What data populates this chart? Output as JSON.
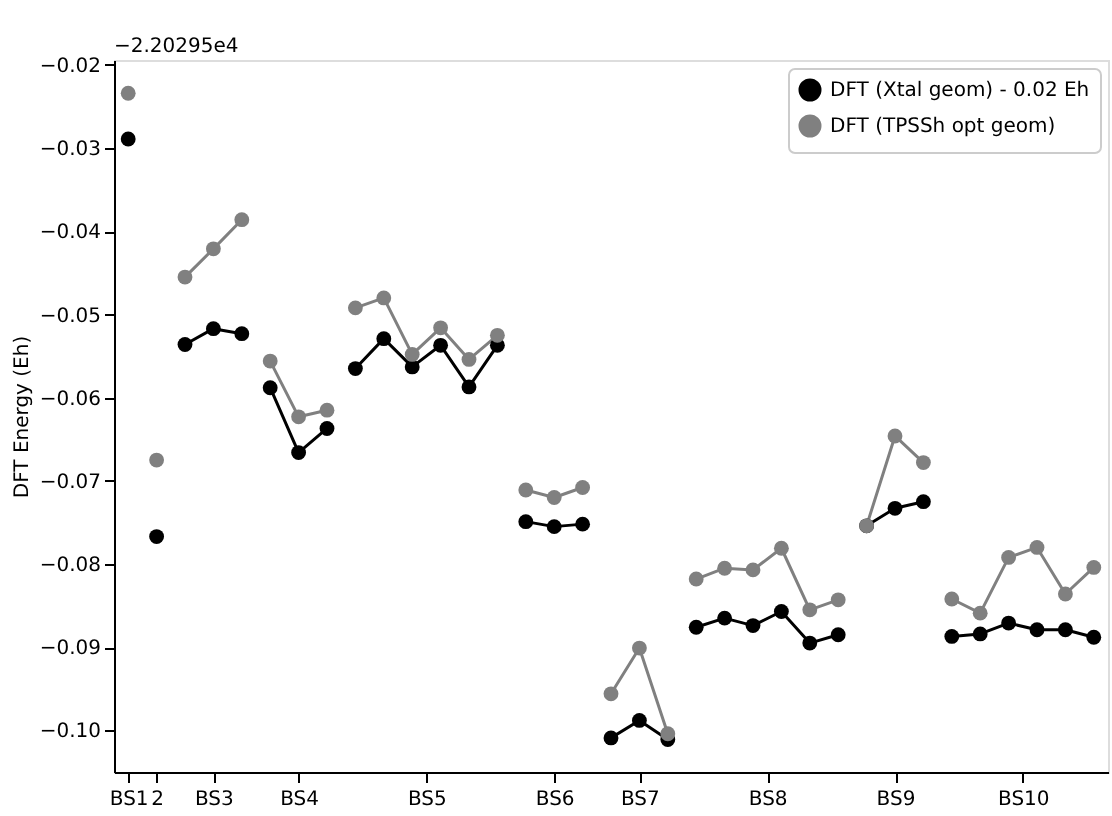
{
  "chart_data": {
    "type": "line",
    "ylabel": "DFT Energy (Eh)",
    "annotations": [
      "−2.20295e4"
    ],
    "ylim": [
      -0.105,
      -0.0194
    ],
    "yticks": [
      {
        "value": -0.02,
        "label": "−0.02"
      },
      {
        "value": -0.03,
        "label": "−0.03"
      },
      {
        "value": -0.04,
        "label": "−0.04"
      },
      {
        "value": -0.05,
        "label": "−0.05"
      },
      {
        "value": -0.06,
        "label": "−0.06"
      },
      {
        "value": -0.07,
        "label": "−0.07"
      },
      {
        "value": -0.08,
        "label": "−0.08"
      },
      {
        "value": -0.09,
        "label": "−0.09"
      },
      {
        "value": -0.1,
        "label": "−0.10"
      }
    ],
    "categories": [
      "BS1",
      null,
      "2",
      null,
      null,
      null,
      "BS3",
      null,
      null,
      null,
      null,
      null,
      "BS4",
      null,
      null,
      null,
      null,
      null,
      null,
      null,
      null,
      "BS5",
      null,
      null,
      null,
      null,
      null,
      null,
      null,
      null,
      "BS6",
      null,
      null,
      null,
      null,
      null,
      "BS7",
      null,
      null,
      null,
      null,
      null,
      null,
      null,
      null,
      "BS8",
      null,
      null,
      null,
      null,
      null,
      null,
      null,
      null,
      "BS9",
      null,
      null,
      null,
      null,
      null,
      null,
      null,
      null,
      "BS10",
      null,
      null,
      null,
      null,
      null
    ],
    "series": [
      {
        "name": "DFT (Xtal geom) - 0.02 Eh",
        "color": "#000000",
        "values": [
          -0.0289,
          null,
          null,
          null,
          null,
          null,
          null,
          null,
          null,
          null,
          null,
          null,
          null,
          null,
          null,
          null,
          null,
          null,
          null,
          null,
          null,
          null,
          null,
          null,
          null,
          null,
          null,
          null,
          null,
          null,
          null,
          null,
          null,
          null,
          null,
          null,
          null,
          null,
          null,
          null,
          null,
          null,
          null,
          null,
          null,
          null,
          null,
          null,
          null,
          null,
          null,
          null,
          null,
          null,
          null,
          null,
          null,
          null,
          null,
          null,
          null,
          null,
          null,
          null,
          null,
          null,
          null,
          null,
          null
        ]
      },
      {
        "name": "DFT (TPSSh opt geom)",
        "color": "#808080",
        "values": [
          -0.0234,
          null,
          null,
          null,
          null,
          null,
          null,
          null,
          null,
          null,
          null,
          null,
          null,
          null,
          null,
          null,
          null,
          null,
          null,
          null,
          null,
          null,
          null,
          null,
          null,
          null,
          null,
          null,
          null,
          null,
          null,
          null,
          null,
          null,
          null,
          null,
          null,
          null,
          null,
          null,
          null,
          null,
          null,
          null,
          null,
          null,
          null,
          null,
          null,
          null,
          null,
          null,
          null,
          null,
          null,
          null,
          null,
          null,
          null,
          null,
          null,
          null,
          null,
          null,
          null,
          null,
          null,
          null,
          null
        ]
      },
      {
        "color": "#000000",
        "values": [
          null,
          null,
          -0.0767,
          null,
          null,
          null,
          null,
          null,
          null,
          null,
          null,
          null,
          null,
          null,
          null,
          null,
          null,
          null,
          null,
          null,
          null,
          null,
          null,
          null,
          null,
          null,
          null,
          null,
          null,
          null,
          null,
          null,
          null,
          null,
          null,
          null,
          null,
          null,
          null,
          null,
          null,
          null,
          null,
          null,
          null,
          null,
          null,
          null,
          null,
          null,
          null,
          null,
          null,
          null,
          null,
          null,
          null,
          null,
          null,
          null,
          null,
          null,
          null,
          null,
          null,
          null,
          null,
          null,
          null
        ]
      },
      {
        "color": "#808080",
        "values": [
          null,
          null,
          -0.0675,
          null,
          null,
          null,
          null,
          null,
          null,
          null,
          null,
          null,
          null,
          null,
          null,
          null,
          null,
          null,
          null,
          null,
          null,
          null,
          null,
          null,
          null,
          null,
          null,
          null,
          null,
          null,
          null,
          null,
          null,
          null,
          null,
          null,
          null,
          null,
          null,
          null,
          null,
          null,
          null,
          null,
          null,
          null,
          null,
          null,
          null,
          null,
          null,
          null,
          null,
          null,
          null,
          null,
          null,
          null,
          null,
          null,
          null,
          null,
          null,
          null,
          null,
          null,
          null,
          null,
          null
        ]
      },
      {
        "color": "#000000",
        "values": [
          null,
          null,
          null,
          null,
          -0.0536,
          null,
          -0.0517,
          null,
          -0.0523,
          null,
          null,
          null,
          null,
          null,
          null,
          null,
          null,
          null,
          null,
          null,
          null,
          null,
          null,
          null,
          null,
          null,
          null,
          null,
          null,
          null,
          null,
          null,
          null,
          null,
          null,
          null,
          null,
          null,
          null,
          null,
          null,
          null,
          null,
          null,
          null,
          null,
          null,
          null,
          null,
          null,
          null,
          null,
          null,
          null,
          null,
          null,
          null,
          null,
          null,
          null,
          null,
          null,
          null,
          null,
          null,
          null,
          null,
          null,
          null
        ]
      },
      {
        "color": "#808080",
        "values": [
          null,
          null,
          null,
          null,
          -0.0455,
          null,
          -0.0421,
          null,
          -0.0386,
          null,
          null,
          null,
          null,
          null,
          null,
          null,
          null,
          null,
          null,
          null,
          null,
          null,
          null,
          null,
          null,
          null,
          null,
          null,
          null,
          null,
          null,
          null,
          null,
          null,
          null,
          null,
          null,
          null,
          null,
          null,
          null,
          null,
          null,
          null,
          null,
          null,
          null,
          null,
          null,
          null,
          null,
          null,
          null,
          null,
          null,
          null,
          null,
          null,
          null,
          null,
          null,
          null,
          null,
          null,
          null,
          null,
          null,
          null,
          null
        ]
      },
      {
        "color": "#000000",
        "values": [
          null,
          null,
          null,
          null,
          null,
          null,
          null,
          null,
          null,
          null,
          -0.0588,
          null,
          -0.0666,
          null,
          -0.0637,
          null,
          null,
          null,
          null,
          null,
          null,
          null,
          null,
          null,
          null,
          null,
          null,
          null,
          null,
          null,
          null,
          null,
          null,
          null,
          null,
          null,
          null,
          null,
          null,
          null,
          null,
          null,
          null,
          null,
          null,
          null,
          null,
          null,
          null,
          null,
          null,
          null,
          null,
          null,
          null,
          null,
          null,
          null,
          null,
          null,
          null,
          null,
          null,
          null,
          null,
          null,
          null,
          null,
          null
        ]
      },
      {
        "color": "#808080",
        "values": [
          null,
          null,
          null,
          null,
          null,
          null,
          null,
          null,
          null,
          null,
          -0.0556,
          null,
          -0.0623,
          null,
          -0.0615,
          null,
          null,
          null,
          null,
          null,
          null,
          null,
          null,
          null,
          null,
          null,
          null,
          null,
          null,
          null,
          null,
          null,
          null,
          null,
          null,
          null,
          null,
          null,
          null,
          null,
          null,
          null,
          null,
          null,
          null,
          null,
          null,
          null,
          null,
          null,
          null,
          null,
          null,
          null,
          null,
          null,
          null,
          null,
          null,
          null,
          null,
          null,
          null,
          null,
          null,
          null,
          null,
          null,
          null
        ]
      },
      {
        "color": "#000000",
        "values": [
          null,
          null,
          null,
          null,
          null,
          null,
          null,
          null,
          null,
          null,
          null,
          null,
          null,
          null,
          null,
          null,
          -0.0565,
          null,
          -0.0529,
          null,
          -0.0563,
          null,
          -0.0537,
          null,
          -0.0587,
          null,
          -0.0537,
          null,
          null,
          null,
          null,
          null,
          null,
          null,
          null,
          null,
          null,
          null,
          null,
          null,
          null,
          null,
          null,
          null,
          null,
          null,
          null,
          null,
          null,
          null,
          null,
          null,
          null,
          null,
          null,
          null,
          null,
          null,
          null,
          null,
          null,
          null,
          null,
          null,
          null,
          null,
          null,
          null,
          null
        ]
      },
      {
        "color": "#808080",
        "values": [
          null,
          null,
          null,
          null,
          null,
          null,
          null,
          null,
          null,
          null,
          null,
          null,
          null,
          null,
          null,
          null,
          -0.0492,
          null,
          -0.048,
          null,
          -0.0548,
          null,
          -0.0516,
          null,
          -0.0554,
          null,
          -0.0525,
          null,
          null,
          null,
          null,
          null,
          null,
          null,
          null,
          null,
          null,
          null,
          null,
          null,
          null,
          null,
          null,
          null,
          null,
          null,
          null,
          null,
          null,
          null,
          null,
          null,
          null,
          null,
          null,
          null,
          null,
          null,
          null,
          null,
          null,
          null,
          null,
          null,
          null,
          null,
          null,
          null,
          null
        ]
      },
      {
        "color": "#000000",
        "values": [
          null,
          null,
          null,
          null,
          null,
          null,
          null,
          null,
          null,
          null,
          null,
          null,
          null,
          null,
          null,
          null,
          null,
          null,
          null,
          null,
          null,
          null,
          null,
          null,
          null,
          null,
          null,
          null,
          -0.0749,
          null,
          -0.0755,
          null,
          -0.0752,
          null,
          null,
          null,
          null,
          null,
          null,
          null,
          null,
          null,
          null,
          null,
          null,
          null,
          null,
          null,
          null,
          null,
          null,
          null,
          null,
          null,
          null,
          null,
          null,
          null,
          null,
          null,
          null,
          null,
          null,
          null,
          null,
          null,
          null,
          null,
          null
        ]
      },
      {
        "color": "#808080",
        "values": [
          null,
          null,
          null,
          null,
          null,
          null,
          null,
          null,
          null,
          null,
          null,
          null,
          null,
          null,
          null,
          null,
          null,
          null,
          null,
          null,
          null,
          null,
          null,
          null,
          null,
          null,
          null,
          null,
          -0.0711,
          null,
          -0.072,
          null,
          -0.0708,
          null,
          null,
          null,
          null,
          null,
          null,
          null,
          null,
          null,
          null,
          null,
          null,
          null,
          null,
          null,
          null,
          null,
          null,
          null,
          null,
          null,
          null,
          null,
          null,
          null,
          null,
          null,
          null,
          null,
          null,
          null,
          null,
          null,
          null,
          null,
          null
        ]
      },
      {
        "color": "#000000",
        "values": [
          null,
          null,
          null,
          null,
          null,
          null,
          null,
          null,
          null,
          null,
          null,
          null,
          null,
          null,
          null,
          null,
          null,
          null,
          null,
          null,
          null,
          null,
          null,
          null,
          null,
          null,
          null,
          null,
          null,
          null,
          null,
          null,
          null,
          null,
          -0.1009,
          null,
          -0.0988,
          null,
          -0.1011,
          null,
          null,
          null,
          null,
          null,
          null,
          null,
          null,
          null,
          null,
          null,
          null,
          null,
          null,
          null,
          null,
          null,
          null,
          null,
          null,
          null,
          null,
          null,
          null,
          null,
          null,
          null,
          null,
          null,
          null
        ]
      },
      {
        "color": "#808080",
        "values": [
          null,
          null,
          null,
          null,
          null,
          null,
          null,
          null,
          null,
          null,
          null,
          null,
          null,
          null,
          null,
          null,
          null,
          null,
          null,
          null,
          null,
          null,
          null,
          null,
          null,
          null,
          null,
          null,
          null,
          null,
          null,
          null,
          null,
          null,
          -0.0956,
          null,
          -0.0901,
          null,
          -0.1004,
          null,
          null,
          null,
          null,
          null,
          null,
          null,
          null,
          null,
          null,
          null,
          null,
          null,
          null,
          null,
          null,
          null,
          null,
          null,
          null,
          null,
          null,
          null,
          null,
          null,
          null,
          null,
          null,
          null,
          null
        ]
      },
      {
        "color": "#000000",
        "values": [
          null,
          null,
          null,
          null,
          null,
          null,
          null,
          null,
          null,
          null,
          null,
          null,
          null,
          null,
          null,
          null,
          null,
          null,
          null,
          null,
          null,
          null,
          null,
          null,
          null,
          null,
          null,
          null,
          null,
          null,
          null,
          null,
          null,
          null,
          null,
          null,
          null,
          null,
          null,
          null,
          -0.0876,
          null,
          -0.0865,
          null,
          -0.0874,
          null,
          -0.0857,
          null,
          -0.0895,
          null,
          -0.0885,
          null,
          null,
          null,
          null,
          null,
          null,
          null,
          null,
          null,
          null,
          null,
          null,
          null,
          null,
          null,
          null,
          null,
          null
        ]
      },
      {
        "color": "#808080",
        "values": [
          null,
          null,
          null,
          null,
          null,
          null,
          null,
          null,
          null,
          null,
          null,
          null,
          null,
          null,
          null,
          null,
          null,
          null,
          null,
          null,
          null,
          null,
          null,
          null,
          null,
          null,
          null,
          null,
          null,
          null,
          null,
          null,
          null,
          null,
          null,
          null,
          null,
          null,
          null,
          null,
          -0.0818,
          null,
          -0.0805,
          null,
          -0.0807,
          null,
          -0.0781,
          null,
          -0.0855,
          null,
          -0.0843,
          null,
          null,
          null,
          null,
          null,
          null,
          null,
          null,
          null,
          null,
          null,
          null,
          null,
          null,
          null,
          null,
          null,
          null
        ]
      },
      {
        "color": "#000000",
        "values": [
          null,
          null,
          null,
          null,
          null,
          null,
          null,
          null,
          null,
          null,
          null,
          null,
          null,
          null,
          null,
          null,
          null,
          null,
          null,
          null,
          null,
          null,
          null,
          null,
          null,
          null,
          null,
          null,
          null,
          null,
          null,
          null,
          null,
          null,
          null,
          null,
          null,
          null,
          null,
          null,
          null,
          null,
          null,
          null,
          null,
          null,
          null,
          null,
          null,
          null,
          null,
          null,
          -0.0754,
          null,
          -0.0733,
          null,
          -0.0725,
          null,
          null,
          null,
          null,
          null,
          null,
          null,
          null,
          null,
          null,
          null,
          null
        ]
      },
      {
        "color": "#808080",
        "values": [
          null,
          null,
          null,
          null,
          null,
          null,
          null,
          null,
          null,
          null,
          null,
          null,
          null,
          null,
          null,
          null,
          null,
          null,
          null,
          null,
          null,
          null,
          null,
          null,
          null,
          null,
          null,
          null,
          null,
          null,
          null,
          null,
          null,
          null,
          null,
          null,
          null,
          null,
          null,
          null,
          null,
          null,
          null,
          null,
          null,
          null,
          null,
          null,
          null,
          null,
          null,
          null,
          -0.0754,
          null,
          -0.0646,
          null,
          -0.0678,
          null,
          null,
          null,
          null,
          null,
          null,
          null,
          null,
          null,
          null,
          null,
          null
        ]
      },
      {
        "color": "#000000",
        "values": [
          null,
          null,
          null,
          null,
          null,
          null,
          null,
          null,
          null,
          null,
          null,
          null,
          null,
          null,
          null,
          null,
          null,
          null,
          null,
          null,
          null,
          null,
          null,
          null,
          null,
          null,
          null,
          null,
          null,
          null,
          null,
          null,
          null,
          null,
          null,
          null,
          null,
          null,
          null,
          null,
          null,
          null,
          null,
          null,
          null,
          null,
          null,
          null,
          null,
          null,
          null,
          null,
          null,
          null,
          null,
          null,
          null,
          null,
          -0.0887,
          null,
          -0.0884,
          null,
          -0.0871,
          null,
          -0.0879,
          null,
          -0.0879,
          null,
          -0.0888
        ]
      },
      {
        "color": "#808080",
        "values": [
          null,
          null,
          null,
          null,
          null,
          null,
          null,
          null,
          null,
          null,
          null,
          null,
          null,
          null,
          null,
          null,
          null,
          null,
          null,
          null,
          null,
          null,
          null,
          null,
          null,
          null,
          null,
          null,
          null,
          null,
          null,
          null,
          null,
          null,
          null,
          null,
          null,
          null,
          null,
          null,
          null,
          null,
          null,
          null,
          null,
          null,
          null,
          null,
          null,
          null,
          null,
          null,
          null,
          null,
          null,
          null,
          null,
          null,
          -0.0842,
          null,
          -0.0859,
          null,
          -0.0792,
          null,
          -0.078,
          null,
          -0.0836,
          null,
          -0.0804
        ]
      }
    ],
    "legend": "top right",
    "marker": "circle",
    "line_style": "solid",
    "grid": false
  }
}
